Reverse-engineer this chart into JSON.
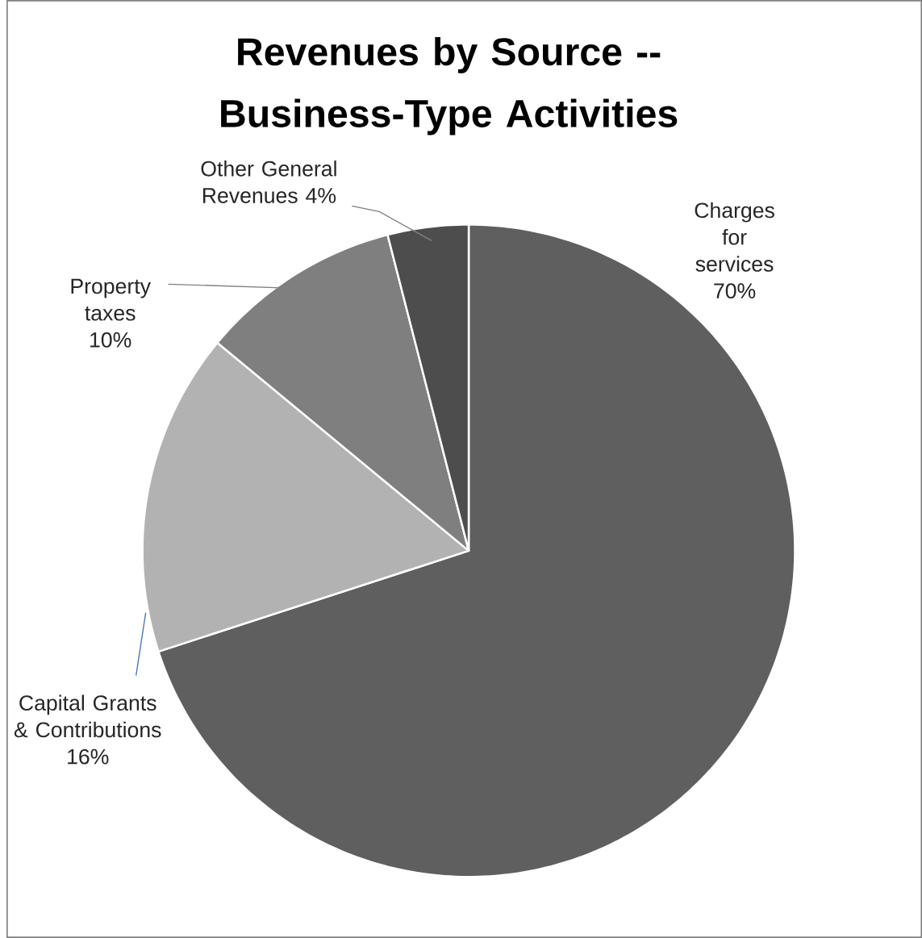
{
  "chart_data": {
    "type": "pie",
    "title": "Revenues by Source -- Business-Type Activities",
    "categories": [
      "Charges for services",
      "Capital Grants & Contributions",
      "Property taxes",
      "Other General Revenues"
    ],
    "values": [
      70,
      16,
      10,
      4
    ],
    "value_labels": [
      "70%",
      "16%",
      "10%",
      "4%"
    ],
    "colors": [
      "#5f5f5f",
      "#b2b2b2",
      "#7f7f7f",
      "#4d4d4d"
    ]
  }
}
